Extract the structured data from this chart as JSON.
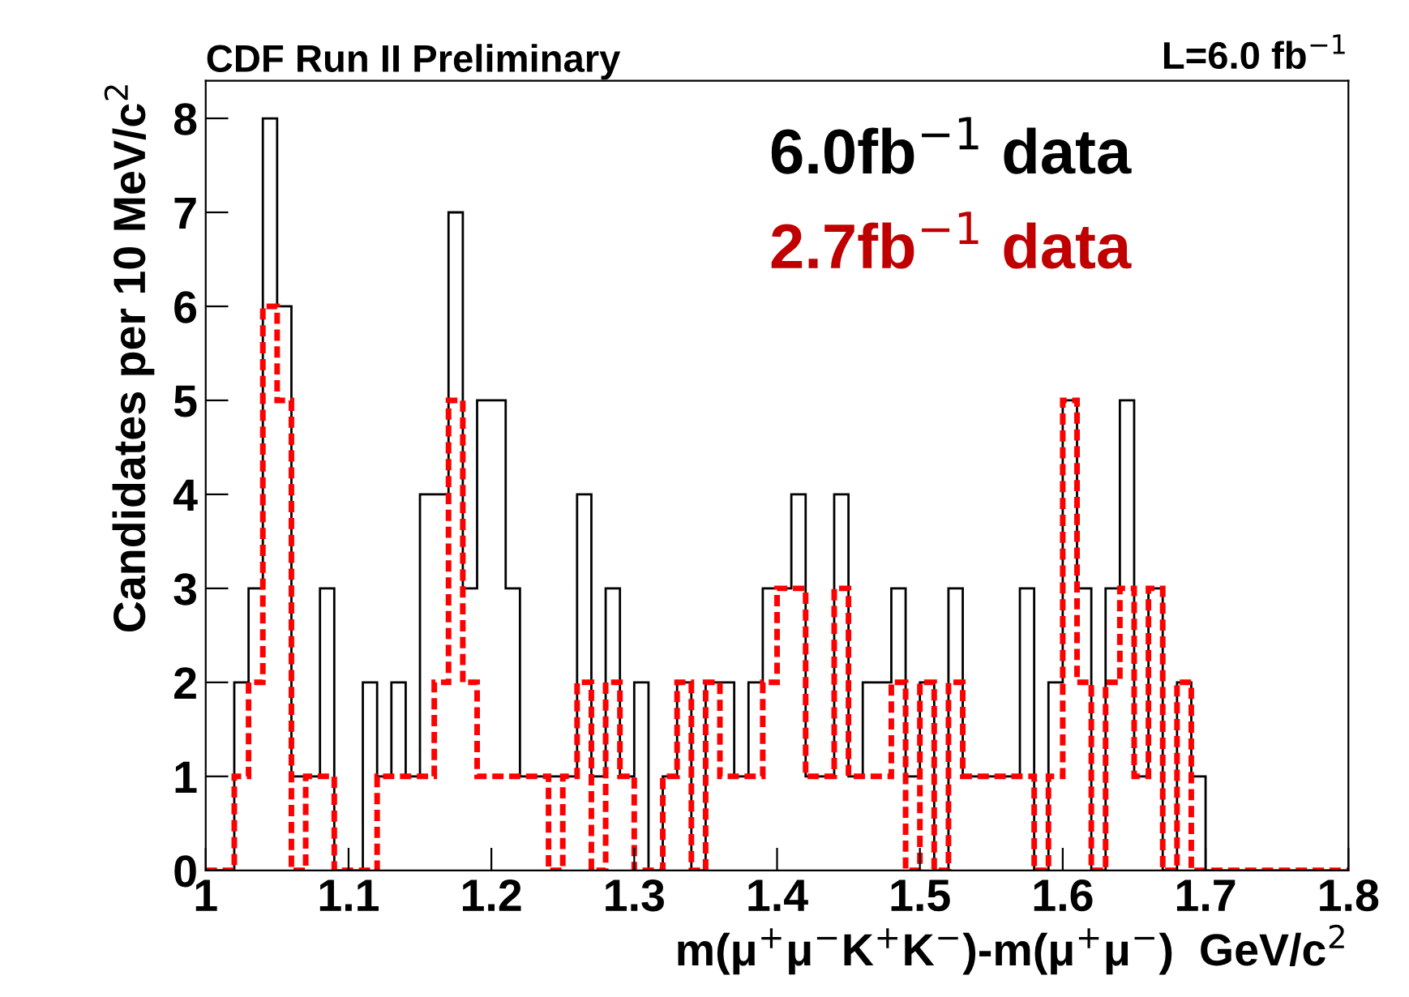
{
  "chart_data": {
    "type": "histogram",
    "title": "CDF Run II Preliminary",
    "annotations": [
      "L=6.0 fb$^{−1}$"
    ],
    "xlabel": "m(μ$^{+}$μ$^{−}$K$^{+}$K$^{−}$)-m(μ$^{+}$μ$^{−}$)  GeV/c$^{2}$",
    "ylabel": "Candidates per 10 MeV/c$^{2}$",
    "bins": [
      1.0,
      1.01,
      1.02,
      1.03,
      1.04,
      1.05,
      1.06,
      1.07,
      1.08,
      1.09,
      1.1,
      1.11,
      1.12,
      1.13,
      1.14,
      1.15,
      1.16,
      1.17,
      1.18,
      1.19,
      1.2,
      1.21,
      1.22,
      1.23,
      1.24,
      1.25,
      1.26,
      1.27,
      1.28,
      1.29,
      1.3,
      1.31,
      1.32,
      1.33,
      1.34,
      1.35,
      1.36,
      1.37,
      1.38,
      1.39,
      1.4,
      1.41,
      1.42,
      1.43,
      1.44,
      1.45,
      1.46,
      1.47,
      1.48,
      1.49,
      1.5,
      1.51,
      1.52,
      1.53,
      1.54,
      1.55,
      1.56,
      1.57,
      1.58,
      1.59,
      1.6,
      1.61,
      1.62,
      1.63,
      1.64,
      1.65,
      1.66,
      1.67,
      1.68,
      1.69,
      1.7,
      1.71,
      1.72,
      1.73,
      1.74,
      1.75,
      1.76,
      1.77,
      1.78,
      1.79,
      1.8
    ],
    "series": [
      {
        "name": "6.0fb$^{−1}$ data",
        "color": "#000000",
        "line_style": "solid",
        "values": [
          0,
          0,
          2,
          3,
          8,
          6,
          1,
          1,
          3,
          0,
          0,
          2,
          1,
          2,
          1,
          4,
          4,
          7,
          3,
          5,
          5,
          3,
          1,
          1,
          1,
          1,
          4,
          1,
          3,
          1,
          2,
          0,
          1,
          2,
          0,
          2,
          2,
          1,
          2,
          3,
          3,
          4,
          1,
          1,
          4,
          1,
          2,
          2,
          3,
          1,
          2,
          0,
          3,
          1,
          1,
          1,
          1,
          3,
          0,
          2,
          5,
          3,
          0,
          3,
          5,
          1,
          3,
          0,
          2,
          1,
          0,
          0,
          0,
          0,
          0,
          0,
          0,
          0,
          0,
          0
        ]
      },
      {
        "name": "2.7fb$^{−1}$ data",
        "color": "#ff0000",
        "line_style": "dashed",
        "values": [
          0,
          0,
          1,
          2,
          6,
          5,
          0,
          1,
          1,
          0,
          0,
          0,
          1,
          1,
          1,
          1,
          2,
          5,
          2,
          1,
          1,
          1,
          1,
          1,
          0,
          1,
          2,
          0,
          2,
          1,
          0,
          0,
          1,
          2,
          0,
          2,
          1,
          1,
          1,
          2,
          3,
          3,
          1,
          1,
          3,
          1,
          1,
          1,
          2,
          0,
          2,
          0,
          2,
          1,
          1,
          1,
          1,
          1,
          0,
          1,
          5,
          2,
          0,
          2,
          3,
          1,
          3,
          0,
          2,
          0,
          0,
          0,
          0,
          0,
          0,
          0,
          0,
          0,
          0,
          0
        ]
      }
    ],
    "xlim": [
      1.0,
      1.8
    ],
    "xticks": [
      1,
      1.1,
      1.2,
      1.3,
      1.4,
      1.5,
      1.6,
      1.7,
      1.8
    ],
    "ylim": [
      0,
      8.4
    ],
    "yticks": [
      0,
      1,
      2,
      3,
      4,
      5,
      6,
      7,
      8
    ],
    "grid": false,
    "legend": "top right"
  }
}
